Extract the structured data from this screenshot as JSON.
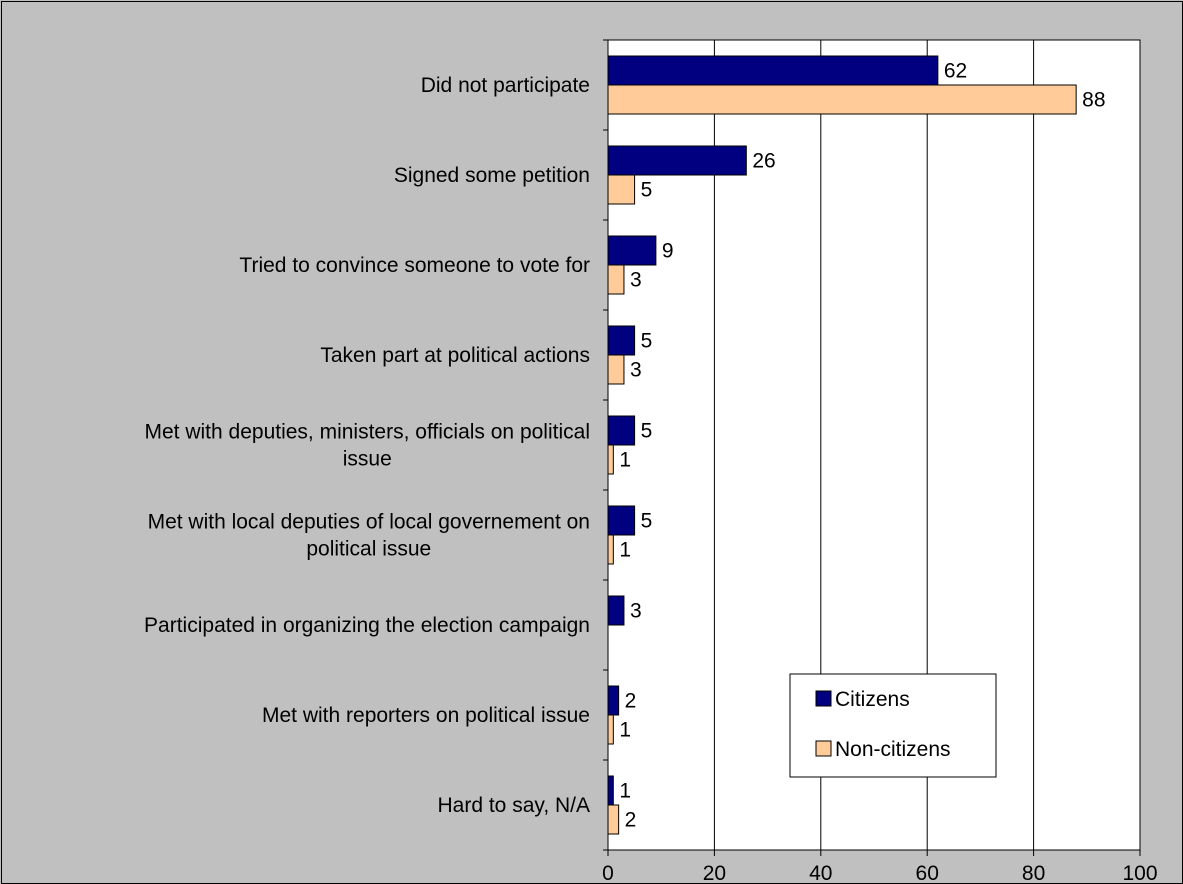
{
  "chart_data": {
    "type": "bar",
    "orientation": "horizontal",
    "categories": [
      [
        "Did not participate"
      ],
      [
        "Signed some petition"
      ],
      [
        "Tried to convince someone to vote for"
      ],
      [
        "Taken part at political actions"
      ],
      [
        "Met with deputies, ministers, officials on political",
        "issue"
      ],
      [
        "Met with local deputies of local governement on",
        "political issue"
      ],
      [
        "Participated in organizing the election campaign"
      ],
      [
        "Met with reporters on political issue"
      ],
      [
        "Hard to say, N/A"
      ]
    ],
    "series": [
      {
        "name": "Citizens",
        "color": "#000080",
        "values": [
          62,
          26,
          9,
          5,
          5,
          5,
          3,
          2,
          1
        ]
      },
      {
        "name": "Non-citizens",
        "color": "#ffcc99",
        "values": [
          88,
          5,
          3,
          3,
          1,
          1,
          null,
          1,
          2
        ]
      }
    ],
    "xlim": [
      0,
      100
    ],
    "xticks": [
      0,
      20,
      40,
      60,
      80,
      100
    ],
    "grid": true,
    "plot_background": "#ffffff",
    "chart_background": "#c0c0c0",
    "legend_position": "bottom-right"
  }
}
